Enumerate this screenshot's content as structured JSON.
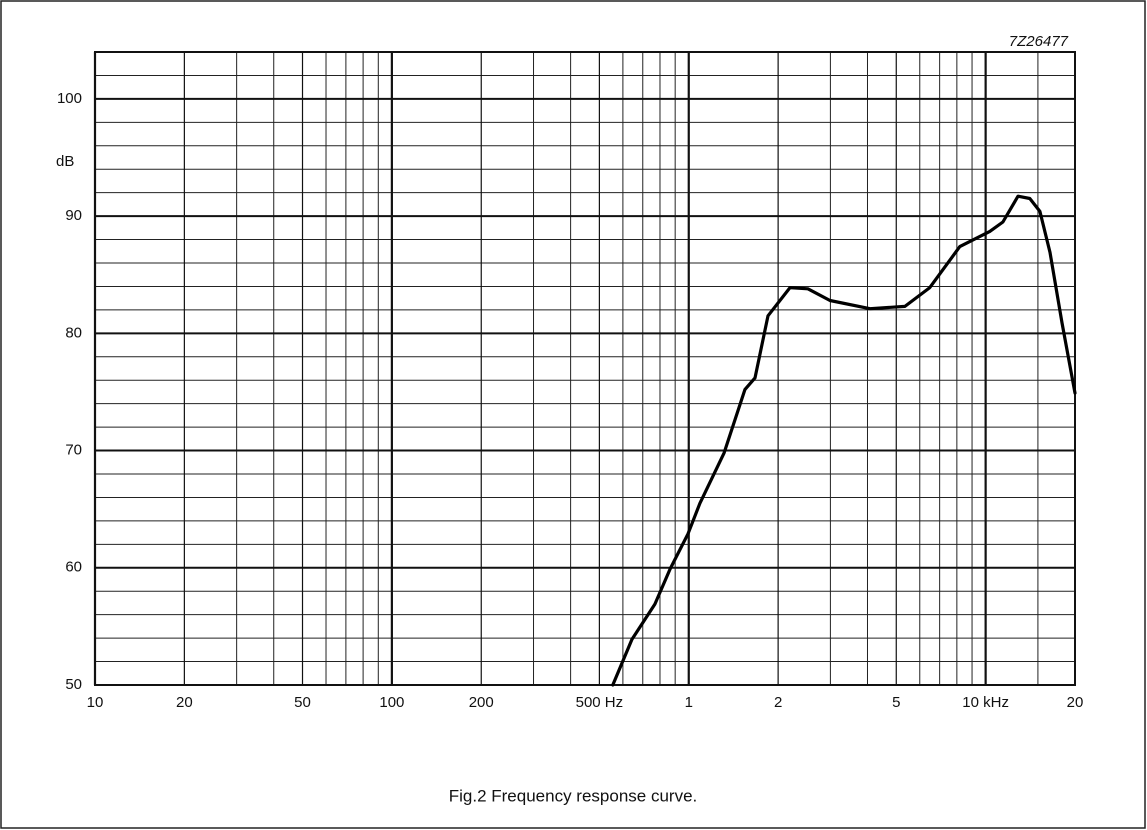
{
  "chart_data": {
    "type": "line",
    "title": "Fig.2 Frequency response curve.",
    "annotation": "7Z26477",
    "y_label": "dB",
    "x_scale": "log",
    "color": "#000000",
    "xlim": [
      10,
      20000
    ],
    "ylim": [
      50,
      104
    ],
    "xticks": [
      10,
      20,
      50,
      100,
      200,
      {
        "value": 500,
        "label": "500 Hz"
      },
      {
        "value": 1000,
        "label": "1"
      },
      {
        "value": 2000,
        "label": "2"
      },
      {
        "value": 5000,
        "label": "5"
      },
      {
        "value": 10000,
        "label": "10 kHz"
      },
      {
        "value": 20000,
        "label": "20"
      }
    ],
    "yticks": [
      50,
      60,
      70,
      80,
      90,
      100
    ],
    "xgrid": [
      30,
      40,
      60,
      70,
      80,
      90,
      300,
      400,
      600,
      700,
      800,
      900,
      3000,
      4000,
      6000,
      7000,
      8000,
      9000,
      15000
    ],
    "ygrid": [
      52,
      54,
      56,
      58,
      62,
      64,
      66,
      68,
      72,
      74,
      76,
      78,
      82,
      84,
      86,
      88,
      92,
      94,
      96,
      98,
      102
    ],
    "x": [
      555,
      644,
      769,
      865,
      994,
      1090,
      1315,
      1546,
      1671,
      1849,
      2193,
      2519,
      2991,
      4077,
      5346,
      6487,
      8183,
      10330,
      11430,
      12850,
      14090,
      15230,
      16480,
      18080,
      20000
    ],
    "values": [
      50,
      53.9,
      56.9,
      59.9,
      62.9,
      65.5,
      69.8,
      75.2,
      76.2,
      81.5,
      83.9,
      83.8,
      82.8,
      82.1,
      82.3,
      83.9,
      87.4,
      88.7,
      89.5,
      91.7,
      91.5,
      90.4,
      86.9,
      80.9,
      74.9
    ]
  }
}
